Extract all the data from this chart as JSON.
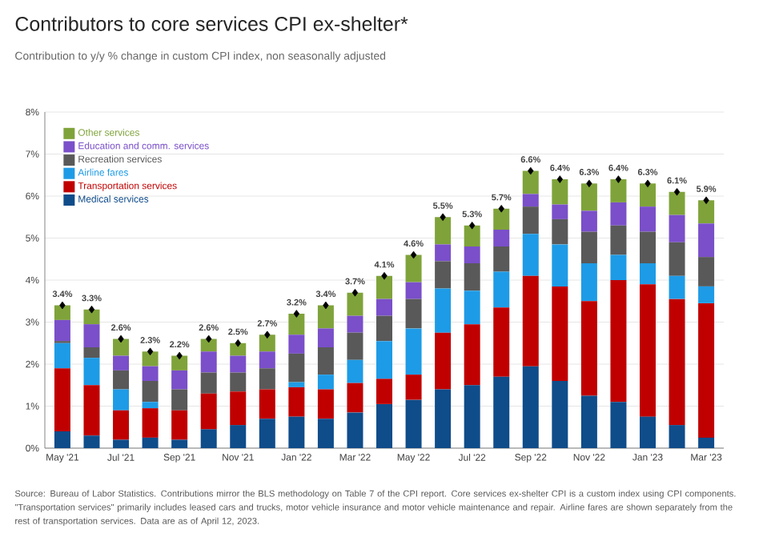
{
  "chart_data": {
    "type": "bar",
    "stacked": true,
    "title": "Contributors to core services CPI ex-shelter*",
    "subtitle": "Contribution to y/y % change in custom CPI index, non seasonally adjusted",
    "categories": [
      "May '21",
      null,
      "Jul '21",
      null,
      "Sep '21",
      null,
      "Nov '21",
      null,
      "Jan '22",
      null,
      "Mar '22",
      null,
      "May '22",
      null,
      "Jul '22",
      null,
      "Sep '22",
      null,
      "Nov '22",
      null,
      "Jan '23",
      null,
      "Mar '23"
    ],
    "series": [
      {
        "name": "Medical services",
        "color": "#0f4c8a",
        "values": [
          0.4,
          0.3,
          0.2,
          0.25,
          0.2,
          0.45,
          0.55,
          0.7,
          0.75,
          0.7,
          0.85,
          1.05,
          1.15,
          1.4,
          1.5,
          1.7,
          1.95,
          1.6,
          1.25,
          1.1,
          0.75,
          0.55,
          0.25
        ]
      },
      {
        "name": "Transportation services",
        "color": "#c00000",
        "values": [
          1.5,
          1.2,
          0.7,
          0.7,
          0.7,
          0.85,
          0.8,
          0.7,
          0.7,
          0.7,
          0.7,
          0.6,
          0.6,
          1.35,
          1.45,
          1.65,
          2.15,
          2.25,
          2.25,
          2.9,
          3.15,
          3.0,
          3.2
        ]
      },
      {
        "name": "Airline fares",
        "color": "#1e9be6",
        "values": [
          0.6,
          0.65,
          0.5,
          0.15,
          0.0,
          0.0,
          0.0,
          0.0,
          0.12,
          0.35,
          0.55,
          0.9,
          1.1,
          1.05,
          0.8,
          0.85,
          1.0,
          1.0,
          0.9,
          0.6,
          0.5,
          0.55,
          0.4
        ]
      },
      {
        "name": "Recreation services",
        "color": "#595959",
        "values": [
          0.05,
          0.25,
          0.45,
          0.5,
          0.5,
          0.5,
          0.45,
          0.5,
          0.68,
          0.65,
          0.65,
          0.6,
          0.7,
          0.65,
          0.65,
          0.6,
          0.65,
          0.6,
          0.75,
          0.7,
          0.75,
          0.8,
          0.7
        ]
      },
      {
        "name": "Education and comm. services",
        "color": "#7a4fc9",
        "values": [
          0.5,
          0.55,
          0.35,
          0.35,
          0.45,
          0.5,
          0.4,
          0.4,
          0.45,
          0.45,
          0.4,
          0.4,
          0.4,
          0.4,
          0.4,
          0.4,
          0.3,
          0.35,
          0.5,
          0.55,
          0.6,
          0.65,
          0.8
        ]
      },
      {
        "name": "Other services",
        "color": "#7fa33a",
        "values": [
          0.35,
          0.35,
          0.4,
          0.35,
          0.35,
          0.3,
          0.3,
          0.4,
          0.5,
          0.55,
          0.55,
          0.55,
          0.65,
          0.65,
          0.5,
          0.5,
          0.55,
          0.6,
          0.65,
          0.55,
          0.55,
          0.55,
          0.55
        ]
      },
      {
        "type": "scatter",
        "marker": "diamond",
        "color": "#000000",
        "values": [
          3.4,
          3.3,
          2.6,
          2.3,
          2.2,
          2.6,
          2.5,
          2.7,
          3.2,
          3.4,
          3.7,
          4.1,
          4.6,
          5.5,
          5.3,
          5.7,
          6.6,
          6.4,
          6.3,
          6.4,
          6.3,
          6.1,
          5.9
        ]
      }
    ],
    "totals": [
      "3.4%",
      "3.3%",
      "2.6%",
      "2.3%",
      "2.2%",
      "2.6%",
      "2.5%",
      "2.7%",
      "3.2%",
      "3.4%",
      "3.7%",
      "4.1%",
      "4.6%",
      "5.5%",
      "5.3%",
      "5.7%",
      "6.6%",
      "6.4%",
      "6.3%",
      "6.4%",
      "6.3%",
      "6.1%",
      "5.9%"
    ],
    "ylim": [
      0,
      8
    ],
    "yticks": [
      {
        "value": 0,
        "label": "0%"
      },
      {
        "value": 1,
        "label": "1%"
      },
      {
        "value": 2,
        "label": "2%"
      },
      {
        "value": 3,
        "label": "3%"
      },
      {
        "value": 4,
        "label": "4%"
      },
      {
        "value": 5,
        "label": "5%"
      },
      {
        "value": 6,
        "label": "6%"
      },
      {
        "value": 7,
        "label": "7%"
      },
      {
        "value": 8,
        "label": "8%"
      }
    ],
    "grid": "y",
    "legend": "top left",
    "annotations": [
      "Source: Bureau of Labor Statistics. Contributions mirror the BLS methodology on Table 7 of the CPI report. Core services ex-shelter CPI is a custom index using CPI components. \"Transportation services\" primarily includes leased cars and trucks, motor vehicle insurance and motor vehicle maintenance and repair. Airline fares are shown separately from the rest of transportation services. Data are as of April 12, 2023."
    ]
  }
}
